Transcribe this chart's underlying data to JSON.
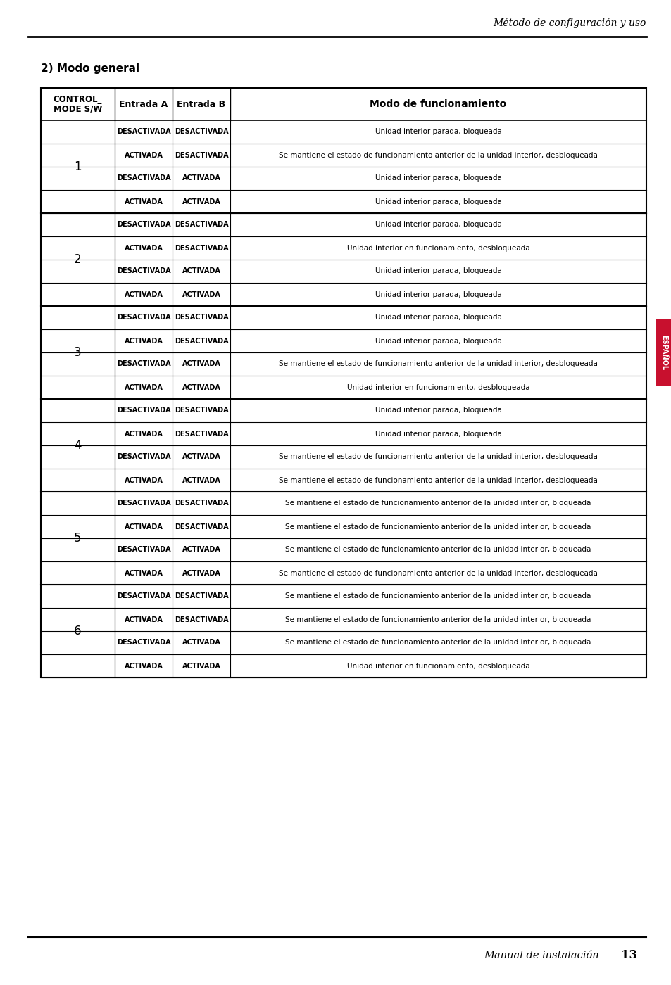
{
  "page_title": "Método de configuración y uso",
  "section_title": "2) Modo general",
  "side_label": "ESPAÑOL",
  "header_col1_line1": "CONTROL_",
  "header_col1_line2": "MODE S/W",
  "header_col2": "Entrada A",
  "header_col3": "Entrada B",
  "header_col4": "Modo de funcionamiento",
  "table_data": [
    [
      "1",
      "DESACTIVADA",
      "DESACTIVADA",
      "Unidad interior parada, bloqueada"
    ],
    [
      "1",
      "ACTIVADA",
      "DESACTIVADA",
      "Se mantiene el estado de funcionamiento anterior de la unidad interior, desbloqueada"
    ],
    [
      "1",
      "DESACTIVADA",
      "ACTIVADA",
      "Unidad interior parada, bloqueada"
    ],
    [
      "1",
      "ACTIVADA",
      "ACTIVADA",
      "Unidad interior parada, bloqueada"
    ],
    [
      "2",
      "DESACTIVADA",
      "DESACTIVADA",
      "Unidad interior parada, bloqueada"
    ],
    [
      "2",
      "ACTIVADA",
      "DESACTIVADA",
      "Unidad interior en funcionamiento, desbloqueada"
    ],
    [
      "2",
      "DESACTIVADA",
      "ACTIVADA",
      "Unidad interior parada, bloqueada"
    ],
    [
      "2",
      "ACTIVADA",
      "ACTIVADA",
      "Unidad interior parada, bloqueada"
    ],
    [
      "3",
      "DESACTIVADA",
      "DESACTIVADA",
      "Unidad interior parada, bloqueada"
    ],
    [
      "3",
      "ACTIVADA",
      "DESACTIVADA",
      "Unidad interior parada, bloqueada"
    ],
    [
      "3",
      "DESACTIVADA",
      "ACTIVADA",
      "Se mantiene el estado de funcionamiento anterior de la unidad interior, desbloqueada"
    ],
    [
      "3",
      "ACTIVADA",
      "ACTIVADA",
      "Unidad interior en funcionamiento, desbloqueada"
    ],
    [
      "4",
      "DESACTIVADA",
      "DESACTIVADA",
      "Unidad interior parada, bloqueada"
    ],
    [
      "4",
      "ACTIVADA",
      "DESACTIVADA",
      "Unidad interior parada, bloqueada"
    ],
    [
      "4",
      "DESACTIVADA",
      "ACTIVADA",
      "Se mantiene el estado de funcionamiento anterior de la unidad interior, desbloqueada"
    ],
    [
      "4",
      "ACTIVADA",
      "ACTIVADA",
      "Se mantiene el estado de funcionamiento anterior de la unidad interior, desbloqueada"
    ],
    [
      "5",
      "DESACTIVADA",
      "DESACTIVADA",
      "Se mantiene el estado de funcionamiento anterior de la unidad interior, bloqueada"
    ],
    [
      "5",
      "ACTIVADA",
      "DESACTIVADA",
      "Se mantiene el estado de funcionamiento anterior de la unidad interior, bloqueada"
    ],
    [
      "5",
      "DESACTIVADA",
      "ACTIVADA",
      "Se mantiene el estado de funcionamiento anterior de la unidad interior, bloqueada"
    ],
    [
      "5",
      "ACTIVADA",
      "ACTIVADA",
      "Se mantiene el estado de funcionamiento anterior de la unidad interior, desbloqueada"
    ],
    [
      "6",
      "DESACTIVADA",
      "DESACTIVADA",
      "Se mantiene el estado de funcionamiento anterior de la unidad interior, bloqueada"
    ],
    [
      "6",
      "ACTIVADA",
      "DESACTIVADA",
      "Se mantiene el estado de funcionamiento anterior de la unidad interior, bloqueada"
    ],
    [
      "6",
      "DESACTIVADA",
      "ACTIVADA",
      "Se mantiene el estado de funcionamiento anterior de la unidad interior, bloqueada"
    ],
    [
      "6",
      "ACTIVADA",
      "ACTIVADA",
      "Unidad interior en funcionamiento, desbloqueada"
    ]
  ],
  "bg_color": "#ffffff",
  "text_color": "#000000",
  "border_color": "#000000",
  "side_tab_color": "#c8102e",
  "footer_italic": "Manual de instalación ",
  "footer_bold": "13"
}
